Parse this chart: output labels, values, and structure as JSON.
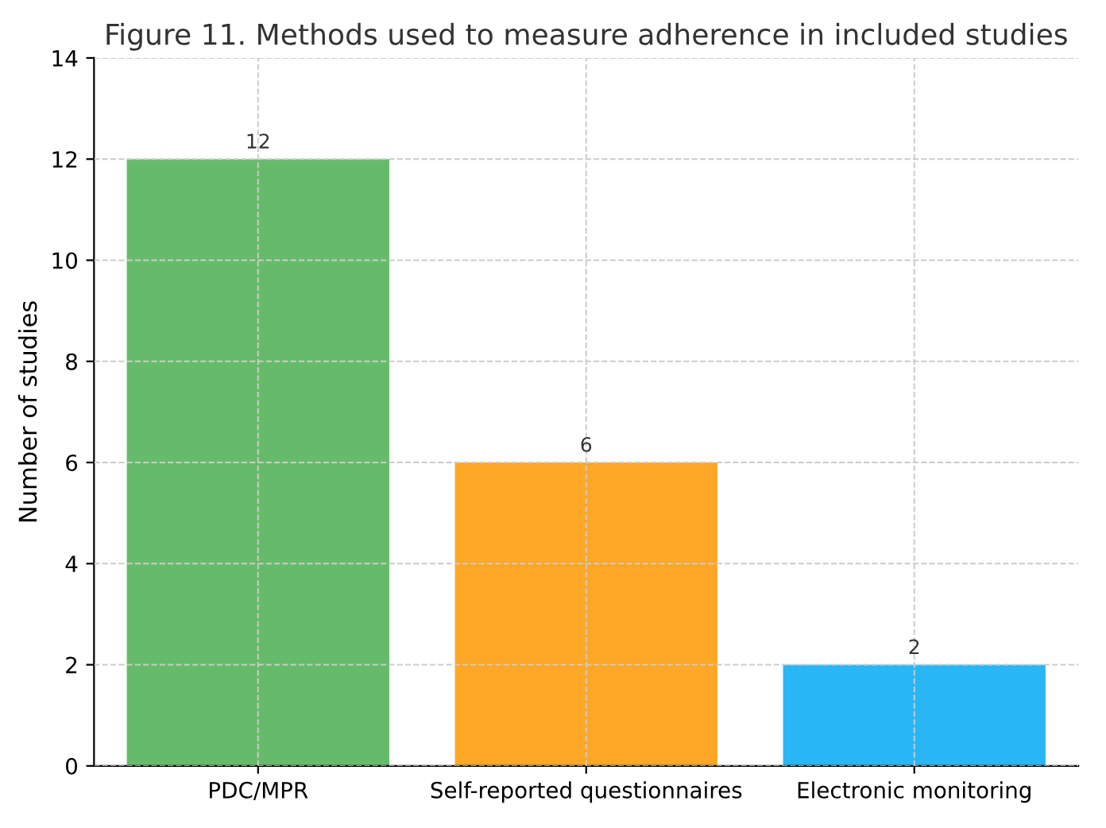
{
  "chart_data": {
    "type": "bar",
    "title": "Figure 11. Methods used to measure adherence in included studies",
    "ylabel": "Number of studies",
    "categories": [
      "PDC/MPR",
      "Self-reported questionnaires",
      "Electronic monitoring"
    ],
    "values": [
      12,
      6,
      2
    ],
    "colors": [
      "#66bb6a",
      "#ffa726",
      "#29b6f6"
    ],
    "ylim": [
      0,
      14
    ],
    "yticks": [
      0,
      2,
      4,
      6,
      8,
      10,
      12,
      14
    ],
    "grid": true,
    "data_labels": true
  }
}
